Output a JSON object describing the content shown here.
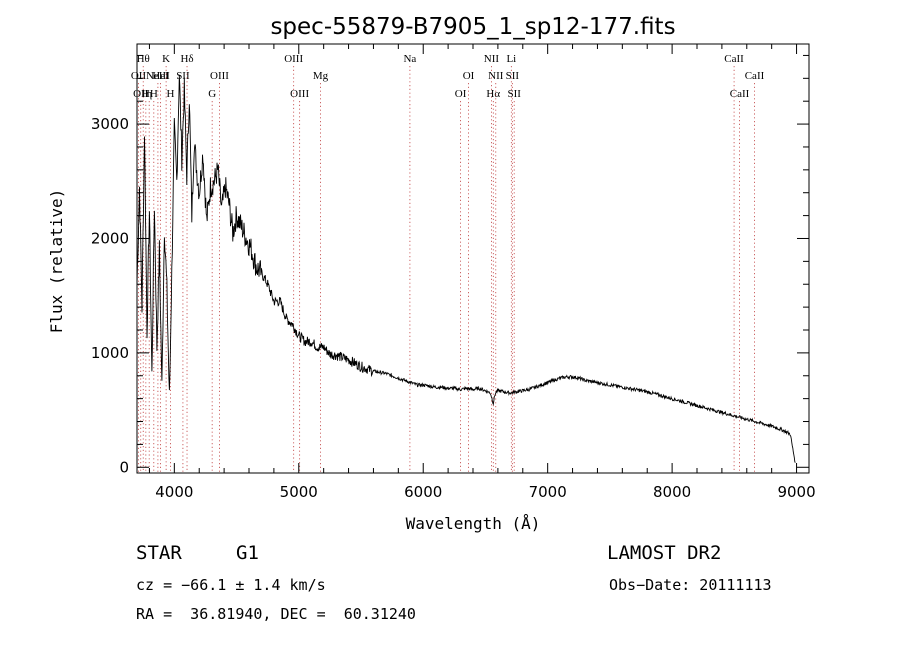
{
  "chart_data": {
    "type": "line",
    "title": "spec-55879-B7905_1_sp12-177.fits",
    "xlabel": "Wavelength (Å)",
    "ylabel": "Flux (relative)",
    "xlim": [
      3700,
      9100
    ],
    "ylim": [
      -50,
      3700
    ],
    "xticks": [
      4000,
      5000,
      6000,
      7000,
      8000,
      9000
    ],
    "yticks": [
      0,
      1000,
      2000,
      3000
    ],
    "xtick_labels": [
      "4000",
      "5000",
      "6000",
      "7000",
      "8000",
      "9000"
    ],
    "ytick_labels": [
      "0",
      "1000",
      "2000",
      "3000"
    ],
    "grid": false,
    "series": [
      {
        "name": "flux",
        "x": [
          3700,
          3720,
          3740,
          3760,
          3780,
          3800,
          3820,
          3840,
          3860,
          3880,
          3900,
          3920,
          3940,
          3960,
          3980,
          4000,
          4020,
          4040,
          4060,
          4080,
          4100,
          4120,
          4140,
          4160,
          4180,
          4200,
          4230,
          4260,
          4290,
          4320,
          4350,
          4380,
          4410,
          4440,
          4470,
          4500,
          4540,
          4580,
          4620,
          4660,
          4700,
          4750,
          4800,
          4850,
          4900,
          4950,
          5000,
          5050,
          5100,
          5150,
          5200,
          5250,
          5300,
          5350,
          5400,
          5450,
          5500,
          5550,
          5600,
          5650,
          5700,
          5750,
          5800,
          5850,
          5900,
          5950,
          6000,
          6050,
          6100,
          6150,
          6200,
          6250,
          6300,
          6350,
          6400,
          6450,
          6500,
          6540,
          6563,
          6580,
          6600,
          6650,
          6700,
          6750,
          6800,
          6850,
          6900,
          6950,
          7000,
          7050,
          7100,
          7150,
          7200,
          7250,
          7300,
          7350,
          7400,
          7450,
          7500,
          7600,
          7700,
          7800,
          7900,
          8000,
          8100,
          8200,
          8300,
          8400,
          8500,
          8600,
          8700,
          8800,
          8850,
          8900,
          8950,
          8970,
          8990
        ],
        "y": [
          1600,
          2450,
          1400,
          2950,
          1200,
          2250,
          800,
          2300,
          1050,
          1900,
          700,
          2100,
          1550,
          600,
          1700,
          2950,
          2500,
          3450,
          2700,
          3300,
          2550,
          3250,
          2200,
          2850,
          2600,
          2400,
          2750,
          2150,
          2450,
          2500,
          2600,
          2250,
          2450,
          2300,
          2050,
          2200,
          2100,
          2000,
          1900,
          1750,
          1700,
          1600,
          1450,
          1450,
          1300,
          1250,
          1150,
          1100,
          1100,
          1050,
          1050,
          990,
          980,
          960,
          940,
          910,
          880,
          860,
          840,
          830,
          820,
          800,
          780,
          760,
          740,
          720,
          720,
          710,
          700,
          700,
          690,
          690,
          680,
          690,
          680,
          690,
          670,
          650,
          560,
          650,
          670,
          660,
          650,
          660,
          670,
          680,
          700,
          720,
          740,
          760,
          780,
          790,
          790,
          780,
          760,
          750,
          740,
          730,
          720,
          700,
          680,
          660,
          630,
          600,
          570,
          540,
          510,
          480,
          450,
          420,
          390,
          360,
          340,
          320,
          290,
          160,
          40
        ]
      }
    ],
    "lines": [
      {
        "x": 3712,
        "label": "OII",
        "row": 2
      },
      {
        "x": 3730,
        "label": "OII",
        "row": 3
      },
      {
        "x": 3750,
        "label": "Hθ",
        "row": 1
      },
      {
        "x": 3771,
        "label": "H",
        "row": 3
      },
      {
        "x": 3798,
        "label": "η",
        "row": 3
      },
      {
        "x": 3835,
        "label": "H",
        "row": 3
      },
      {
        "x": 3868,
        "label": "NeIII",
        "row": 2
      },
      {
        "x": 3889,
        "label": "HeI",
        "row": 2
      },
      {
        "x": 3934,
        "label": "K",
        "row": 1
      },
      {
        "x": 3969,
        "label": "H",
        "row": 3
      },
      {
        "x": 4069,
        "label": "SII",
        "row": 2
      },
      {
        "x": 4102,
        "label": "Hδ",
        "row": 1
      },
      {
        "x": 4304,
        "label": "G",
        "row": 3
      },
      {
        "x": 4363,
        "label": "OIII",
        "row": 2
      },
      {
        "x": 4959,
        "label": "OIII",
        "row": 1
      },
      {
        "x": 5007,
        "label": "OIII",
        "row": 3
      },
      {
        "x": 5175,
        "label": "Mg",
        "row": 2
      },
      {
        "x": 5893,
        "label": "Na",
        "row": 1
      },
      {
        "x": 6300,
        "label": "OI",
        "row": 3
      },
      {
        "x": 6364,
        "label": "OI",
        "row": 2
      },
      {
        "x": 6548,
        "label": "NII",
        "row": 1
      },
      {
        "x": 6563,
        "label": "Hα",
        "row": 3
      },
      {
        "x": 6583,
        "label": "NII",
        "row": 2
      },
      {
        "x": 6708,
        "label": "Li",
        "row": 1
      },
      {
        "x": 6716,
        "label": "SII",
        "row": 2
      },
      {
        "x": 6731,
        "label": "SII",
        "row": 3
      },
      {
        "x": 8498,
        "label": "CaII",
        "row": 1
      },
      {
        "x": 8542,
        "label": "CaII",
        "row": 3
      },
      {
        "x": 8662,
        "label": "CaII",
        "row": 2
      }
    ]
  },
  "info": {
    "class": "STAR",
    "subclass": "G1",
    "survey": "LAMOST DR2",
    "cz": "cz = −66.1 ± 1.4 km/s",
    "obs_date": "Obs−Date: 20111113",
    "coords": "RA =  36.81940, DEC =  60.31240"
  }
}
